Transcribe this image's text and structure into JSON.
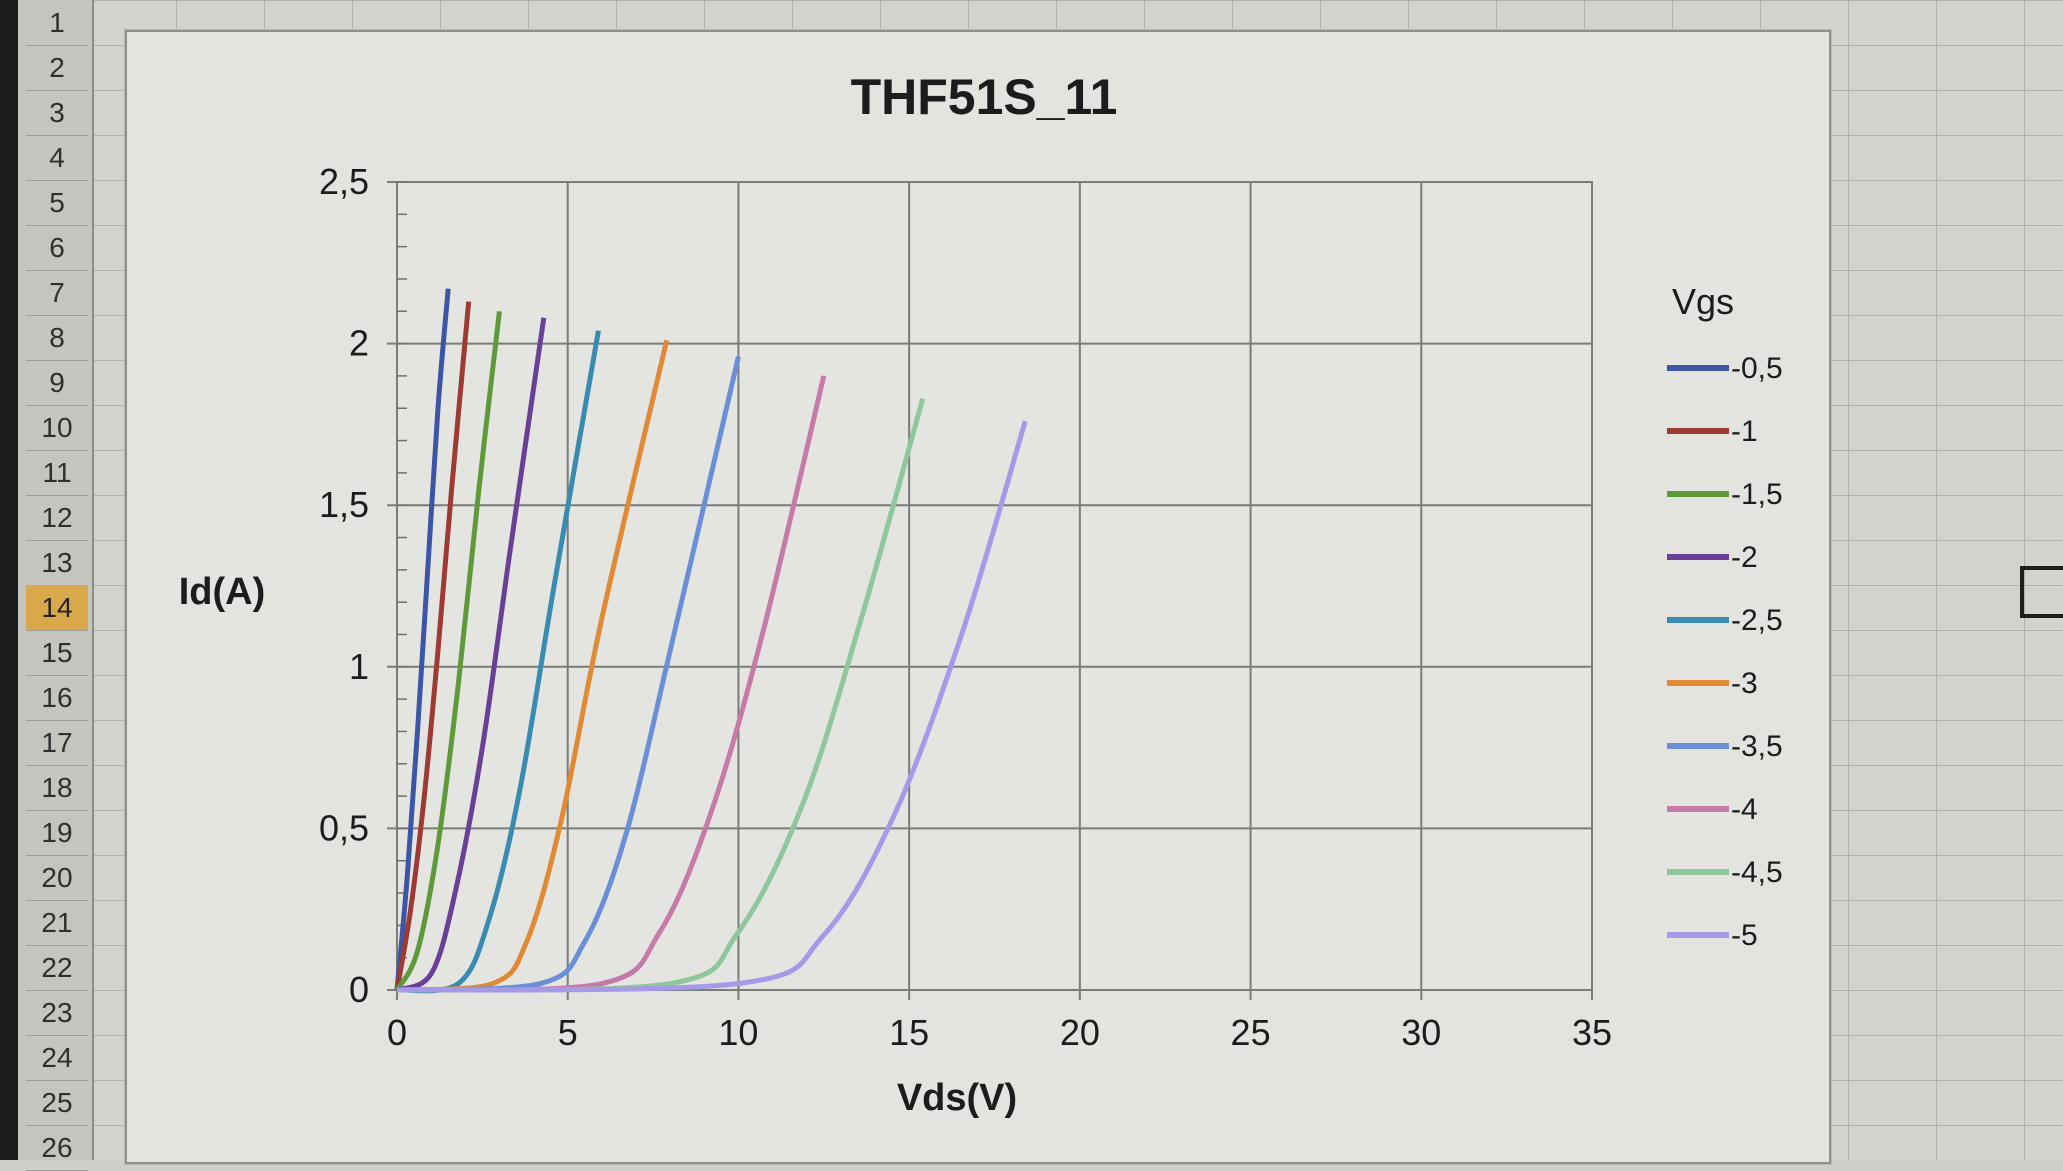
{
  "spreadsheet": {
    "row_numbers": [
      "1",
      "2",
      "3",
      "4",
      "5",
      "6",
      "7",
      "8",
      "9",
      "10",
      "11",
      "12",
      "13",
      "14",
      "15",
      "16",
      "17",
      "18",
      "19",
      "20",
      "21",
      "22",
      "23",
      "24",
      "25",
      "26"
    ],
    "active_row": "14"
  },
  "chart_data": {
    "type": "line",
    "title": "THF51S_11",
    "xlabel": "Vds(V)",
    "ylabel": "Id(A)",
    "xlim": [
      0,
      35
    ],
    "ylim": [
      0,
      2.5
    ],
    "xticks": [
      "0",
      "5",
      "10",
      "15",
      "20",
      "25",
      "30",
      "35"
    ],
    "yticks": [
      "0",
      "0,5",
      "1",
      "1,5",
      "2",
      "2,5"
    ],
    "grid": true,
    "legend_position": "right",
    "legend_title": "Vgs",
    "series": [
      {
        "name": "-0,5",
        "color": "#3c55a5",
        "points": [
          [
            0,
            0
          ],
          [
            0.3,
            0.35
          ],
          [
            0.6,
            0.8
          ],
          [
            0.9,
            1.3
          ],
          [
            1.2,
            1.8
          ],
          [
            1.5,
            2.17
          ]
        ]
      },
      {
        "name": "-1",
        "color": "#9e3a34",
        "points": [
          [
            0,
            0
          ],
          [
            0.4,
            0.25
          ],
          [
            0.8,
            0.6
          ],
          [
            1.2,
            1.05
          ],
          [
            1.6,
            1.55
          ],
          [
            2.1,
            2.13
          ]
        ]
      },
      {
        "name": "-1,5",
        "color": "#5e9a3a",
        "points": [
          [
            0,
            0
          ],
          [
            0.6,
            0.12
          ],
          [
            1.2,
            0.45
          ],
          [
            1.8,
            0.95
          ],
          [
            2.4,
            1.55
          ],
          [
            3.0,
            2.1
          ]
        ]
      },
      {
        "name": "-2",
        "color": "#6a3f96",
        "points": [
          [
            0,
            0
          ],
          [
            1.0,
            0.05
          ],
          [
            1.7,
            0.3
          ],
          [
            2.5,
            0.75
          ],
          [
            3.3,
            1.35
          ],
          [
            4.3,
            2.08
          ]
        ]
      },
      {
        "name": "-2,5",
        "color": "#3a8bb0",
        "points": [
          [
            0,
            0
          ],
          [
            1.8,
            0.02
          ],
          [
            2.7,
            0.22
          ],
          [
            3.6,
            0.62
          ],
          [
            4.6,
            1.25
          ],
          [
            5.9,
            2.04
          ]
        ]
      },
      {
        "name": "-3",
        "color": "#e08a35",
        "points": [
          [
            0,
            0
          ],
          [
            2.8,
            0.02
          ],
          [
            3.8,
            0.15
          ],
          [
            4.8,
            0.52
          ],
          [
            6.0,
            1.15
          ],
          [
            7.9,
            2.01
          ]
        ]
      },
      {
        "name": "-3,5",
        "color": "#6b8fd6",
        "points": [
          [
            0,
            0
          ],
          [
            4.2,
            0.02
          ],
          [
            5.5,
            0.15
          ],
          [
            6.7,
            0.48
          ],
          [
            8.0,
            1.05
          ],
          [
            10.0,
            1.96
          ]
        ]
      },
      {
        "name": "-4",
        "color": "#c57aa8",
        "points": [
          [
            0,
            0
          ],
          [
            6.0,
            0.02
          ],
          [
            7.7,
            0.18
          ],
          [
            9.2,
            0.55
          ],
          [
            10.7,
            1.1
          ],
          [
            12.5,
            1.9
          ]
        ]
      },
      {
        "name": "-4,5",
        "color": "#8fc79c",
        "points": [
          [
            0,
            0
          ],
          [
            8.0,
            0.02
          ],
          [
            10.0,
            0.18
          ],
          [
            11.9,
            0.58
          ],
          [
            13.6,
            1.15
          ],
          [
            15.4,
            1.83
          ]
        ]
      },
      {
        "name": "-5",
        "color": "#a49ae8",
        "points": [
          [
            0,
            0
          ],
          [
            10.0,
            0.02
          ],
          [
            12.5,
            0.17
          ],
          [
            14.6,
            0.55
          ],
          [
            16.6,
            1.12
          ],
          [
            18.4,
            1.76
          ]
        ]
      }
    ]
  }
}
